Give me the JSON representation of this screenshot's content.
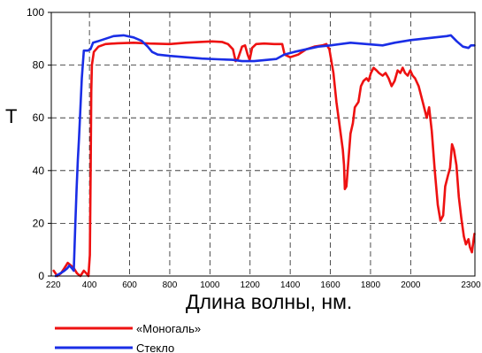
{
  "chart_data": {
    "type": "line",
    "title": "",
    "xlabel": "Длина волны, нм.",
    "ylabel": "T",
    "xlim": [
      210,
      2320
    ],
    "ylim": [
      0,
      100
    ],
    "xticks": [
      220,
      400,
      600,
      800,
      1000,
      1200,
      1400,
      1600,
      1800,
      2000,
      2300
    ],
    "xtick_labels": [
      "220",
      "400",
      "600",
      "800",
      "1000",
      "1200",
      "1400",
      "1600",
      "1800",
      "2000",
      "2300"
    ],
    "yticks": [
      0,
      20,
      40,
      60,
      80,
      100
    ],
    "ytick_labels": [
      "0",
      "20",
      "40",
      "60",
      "80",
      "100"
    ],
    "grid": "dashed vertical and horizontal",
    "legend_position": "bottom-left, below the plot",
    "series": [
      {
        "name": "«Моногаль»",
        "color": "#ee1111",
        "points": [
          [
            222,
            2
          ],
          [
            240,
            0
          ],
          [
            258,
            1
          ],
          [
            275,
            3
          ],
          [
            292,
            5
          ],
          [
            308,
            4
          ],
          [
            322,
            3
          ],
          [
            338,
            1
          ],
          [
            355,
            0
          ],
          [
            372,
            2
          ],
          [
            385,
            1
          ],
          [
            395,
            0
          ],
          [
            402,
            8
          ],
          [
            406,
            40
          ],
          [
            409,
            70
          ],
          [
            412,
            80
          ],
          [
            422,
            85
          ],
          [
            445,
            87
          ],
          [
            480,
            88
          ],
          [
            540,
            88.3
          ],
          [
            620,
            88.5
          ],
          [
            700,
            88.2
          ],
          [
            800,
            88
          ],
          [
            880,
            88.5
          ],
          [
            950,
            88.8
          ],
          [
            1010,
            89
          ],
          [
            1060,
            88.8
          ],
          [
            1090,
            88
          ],
          [
            1115,
            86
          ],
          [
            1128,
            81.5
          ],
          [
            1140,
            82.5
          ],
          [
            1160,
            87
          ],
          [
            1175,
            87.5
          ],
          [
            1188,
            84
          ],
          [
            1198,
            82
          ],
          [
            1210,
            86.5
          ],
          [
            1230,
            88
          ],
          [
            1270,
            88.2
          ],
          [
            1320,
            88
          ],
          [
            1360,
            88
          ],
          [
            1372,
            84
          ],
          [
            1400,
            83
          ],
          [
            1440,
            84
          ],
          [
            1480,
            86
          ],
          [
            1520,
            87
          ],
          [
            1560,
            87.5
          ],
          [
            1580,
            88
          ],
          [
            1595,
            86
          ],
          [
            1615,
            77
          ],
          [
            1630,
            66
          ],
          [
            1648,
            56
          ],
          [
            1662,
            48
          ],
          [
            1668,
            42
          ],
          [
            1672,
            33
          ],
          [
            1680,
            34
          ],
          [
            1690,
            44
          ],
          [
            1700,
            54
          ],
          [
            1712,
            58
          ],
          [
            1722,
            64
          ],
          [
            1740,
            66
          ],
          [
            1752,
            72
          ],
          [
            1765,
            74
          ],
          [
            1780,
            75
          ],
          [
            1790,
            74
          ],
          [
            1802,
            77
          ],
          [
            1815,
            79
          ],
          [
            1830,
            78
          ],
          [
            1842,
            77
          ],
          [
            1860,
            76
          ],
          [
            1875,
            77
          ],
          [
            1890,
            75
          ],
          [
            1905,
            72
          ],
          [
            1920,
            74
          ],
          [
            1935,
            78
          ],
          [
            1948,
            77
          ],
          [
            1960,
            79
          ],
          [
            1972,
            77
          ],
          [
            1985,
            76
          ],
          [
            1998,
            78
          ],
          [
            2010,
            76
          ],
          [
            2022,
            75
          ],
          [
            2040,
            72
          ],
          [
            2060,
            66
          ],
          [
            2080,
            60
          ],
          [
            2092,
            64
          ],
          [
            2105,
            55
          ],
          [
            2120,
            40
          ],
          [
            2135,
            27
          ],
          [
            2148,
            21
          ],
          [
            2162,
            23
          ],
          [
            2172,
            34
          ],
          [
            2185,
            38
          ],
          [
            2196,
            41
          ],
          [
            2206,
            50
          ],
          [
            2215,
            48
          ],
          [
            2228,
            42
          ],
          [
            2240,
            30
          ],
          [
            2252,
            22
          ],
          [
            2265,
            15
          ],
          [
            2275,
            12
          ],
          [
            2288,
            14
          ],
          [
            2295,
            11
          ],
          [
            2305,
            9
          ],
          [
            2312,
            13
          ],
          [
            2318,
            16
          ]
        ]
      },
      {
        "name": "Стекло",
        "color": "#1a2ee6",
        "points": [
          [
            232,
            0
          ],
          [
            255,
            1
          ],
          [
            275,
            2
          ],
          [
            290,
            3
          ],
          [
            300,
            4
          ],
          [
            312,
            3
          ],
          [
            322,
            2
          ],
          [
            330,
            20
          ],
          [
            336,
            33
          ],
          [
            342,
            44
          ],
          [
            348,
            52
          ],
          [
            354,
            62
          ],
          [
            362,
            75
          ],
          [
            372,
            85.5
          ],
          [
            392,
            85.5
          ],
          [
            405,
            86
          ],
          [
            418,
            88.5
          ],
          [
            440,
            89
          ],
          [
            480,
            90
          ],
          [
            520,
            91
          ],
          [
            570,
            91.3
          ],
          [
            620,
            90.5
          ],
          [
            660,
            89.2
          ],
          [
            690,
            87
          ],
          [
            712,
            85
          ],
          [
            740,
            84
          ],
          [
            800,
            83.5
          ],
          [
            880,
            83
          ],
          [
            960,
            82.5
          ],
          [
            1040,
            82.2
          ],
          [
            1110,
            82
          ],
          [
            1160,
            81.5
          ],
          [
            1220,
            81.5
          ],
          [
            1290,
            82
          ],
          [
            1330,
            82.3
          ],
          [
            1370,
            84
          ],
          [
            1420,
            85
          ],
          [
            1480,
            86
          ],
          [
            1540,
            87
          ],
          [
            1600,
            87.5
          ],
          [
            1700,
            88.5
          ],
          [
            1780,
            88
          ],
          [
            1860,
            87.5
          ],
          [
            1920,
            88.5
          ],
          [
            2000,
            89.5
          ],
          [
            2060,
            90
          ],
          [
            2120,
            90.5
          ],
          [
            2180,
            91
          ],
          [
            2200,
            91.3
          ],
          [
            2230,
            89
          ],
          [
            2260,
            87
          ],
          [
            2288,
            86.5
          ],
          [
            2300,
            87.5
          ],
          [
            2318,
            87.5
          ]
        ]
      }
    ]
  }
}
